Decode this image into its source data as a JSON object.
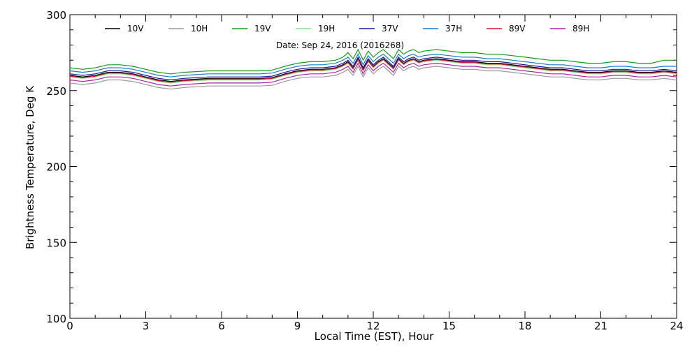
{
  "chart_data": {
    "type": "line",
    "title": "",
    "annotation": "Date: Sep 24, 2016 (2016268)",
    "xlabel": "Local Time (EST), Hour",
    "ylabel": "Brightness Temperature, Deg K",
    "xlim": [
      0,
      24
    ],
    "ylim": [
      100,
      300
    ],
    "xticks": [
      0,
      3,
      6,
      9,
      12,
      15,
      18,
      21,
      24
    ],
    "yticks": [
      100,
      150,
      200,
      250,
      300
    ],
    "grid": false,
    "legend_position": "top",
    "x": [
      0,
      0.5,
      1,
      1.5,
      2,
      2.5,
      3,
      3.5,
      4,
      4.5,
      5,
      5.5,
      6,
      6.5,
      7,
      7.5,
      8,
      8.5,
      9,
      9.5,
      10,
      10.5,
      10.8,
      11,
      11.2,
      11.4,
      11.6,
      11.8,
      12,
      12.2,
      12.4,
      12.6,
      12.8,
      13,
      13.2,
      13.4,
      13.6,
      13.8,
      14,
      14.5,
      15,
      15.5,
      16,
      16.5,
      17,
      17.5,
      18,
      18.5,
      19,
      19.5,
      20,
      20.5,
      21,
      21.5,
      22,
      22.5,
      23,
      23.5,
      24
    ],
    "series": [
      {
        "name": "10V",
        "color": "#000000",
        "values": [
          260,
          259,
          260,
          262,
          262,
          261,
          259,
          257,
          256,
          257,
          257.5,
          258,
          258,
          258,
          258,
          258,
          258.5,
          261,
          263,
          264,
          264,
          265,
          267,
          269,
          265,
          271,
          264,
          270,
          266,
          269,
          271,
          268,
          265,
          271,
          268,
          270,
          271,
          269,
          270,
          271,
          270,
          269,
          269,
          268,
          268,
          267,
          266,
          265,
          264,
          264,
          263,
          262,
          262,
          263,
          263,
          262,
          262,
          263,
          262
        ]
      },
      {
        "name": "10H",
        "color": "#9a9a9a",
        "values": [
          255,
          254,
          255,
          257,
          257,
          256,
          254,
          252,
          251,
          252,
          252.5,
          253,
          253,
          253,
          253,
          253,
          253.5,
          256,
          258,
          259,
          259,
          260,
          262,
          264,
          260,
          266,
          259,
          265,
          261,
          264,
          266,
          263,
          260,
          266,
          263,
          265,
          266,
          264,
          265,
          266,
          265,
          264,
          264,
          263,
          263,
          262,
          261,
          260,
          259,
          259,
          258,
          257,
          257,
          258,
          258,
          257,
          257,
          258,
          257
        ]
      },
      {
        "name": "19V",
        "color": "#1a9a1a",
        "values": [
          265,
          264,
          265,
          267,
          267,
          266,
          264,
          262,
          261,
          262,
          262.5,
          263,
          263,
          263,
          263,
          263,
          263.5,
          266,
          268,
          269,
          269,
          270,
          272,
          275,
          271,
          277,
          270,
          276,
          272,
          275,
          277,
          274,
          271,
          277,
          274,
          276,
          277,
          275,
          276,
          277,
          276,
          275,
          275,
          274,
          274,
          273,
          272,
          271,
          270,
          270,
          269,
          268,
          268,
          269,
          269,
          268,
          268,
          270,
          270
        ]
      },
      {
        "name": "19H",
        "color": "#88e088",
        "values": [
          259,
          258,
          259,
          261,
          261,
          260,
          258,
          256,
          255,
          256,
          256.5,
          257,
          257,
          257,
          257,
          257,
          257.5,
          260,
          262,
          263,
          263,
          264,
          266,
          268,
          264,
          270,
          263,
          269,
          265,
          268,
          270,
          267,
          264,
          270,
          267,
          269,
          270,
          268,
          269,
          270,
          269,
          268,
          268,
          267,
          267,
          266,
          265,
          264,
          263,
          263,
          262,
          261,
          261,
          262,
          262,
          261,
          261,
          262,
          261
        ]
      },
      {
        "name": "37V",
        "color": "#1a1a9a",
        "values": [
          261,
          260,
          261,
          263,
          263,
          262,
          260,
          258,
          257,
          258,
          258.5,
          259,
          259,
          259,
          259,
          259,
          259.5,
          262,
          264,
          265,
          265,
          266,
          268,
          270,
          266,
          272,
          265,
          271,
          267,
          270,
          272,
          269,
          266,
          272,
          269,
          271,
          272,
          270,
          271,
          272,
          271,
          270,
          270,
          269,
          269,
          268,
          267,
          266,
          265,
          265,
          264,
          263,
          263,
          264,
          264,
          263,
          263,
          264,
          263
        ]
      },
      {
        "name": "37H",
        "color": "#1a7acc",
        "values": [
          263,
          262,
          263,
          265,
          265,
          264,
          262,
          260,
          259,
          260,
          260.5,
          261,
          261,
          261,
          261,
          261,
          261.5,
          264,
          266,
          267,
          267,
          268,
          270,
          272,
          268,
          274,
          267,
          273,
          269,
          272,
          274,
          271,
          268,
          274,
          271,
          273,
          274,
          272,
          273,
          274,
          273,
          272,
          272,
          271,
          271,
          270,
          269,
          268,
          267,
          267,
          266,
          265,
          265,
          266,
          266,
          265,
          265,
          266,
          266
        ]
      },
      {
        "name": "89V",
        "color": "#cc1a3a",
        "values": [
          259.5,
          258.5,
          259.5,
          261.5,
          261.5,
          260.5,
          258.5,
          256.5,
          255.5,
          256.5,
          257,
          257.5,
          257.5,
          257.5,
          257.5,
          257.5,
          258,
          260.5,
          262.5,
          263.5,
          263.5,
          264.5,
          266.5,
          268.5,
          264.5,
          270.5,
          263.5,
          269.5,
          265.5,
          268.5,
          270.5,
          267.5,
          264.5,
          270.5,
          267.5,
          269.5,
          270.5,
          268.5,
          269.5,
          270.5,
          269.5,
          268.5,
          268.5,
          267.5,
          267.5,
          266.5,
          265.5,
          264.5,
          263.5,
          263.5,
          262.5,
          261.5,
          261.5,
          262.5,
          262.5,
          261.5,
          261.5,
          262.5,
          261.5
        ]
      },
      {
        "name": "89H",
        "color": "#aa22aa",
        "values": [
          257,
          256,
          257,
          259,
          259,
          258,
          256,
          254,
          253,
          254,
          254.5,
          255,
          255,
          255,
          255,
          255,
          255.5,
          258,
          260,
          261,
          261,
          262,
          264,
          266,
          262,
          268,
          261,
          267,
          263,
          266,
          268,
          265,
          262,
          268,
          265,
          267,
          268,
          266,
          267,
          268,
          267,
          266,
          266,
          265,
          265,
          264,
          263,
          262,
          261,
          261,
          260,
          259,
          259,
          260,
          260,
          259,
          259,
          260,
          259
        ]
      }
    ]
  }
}
